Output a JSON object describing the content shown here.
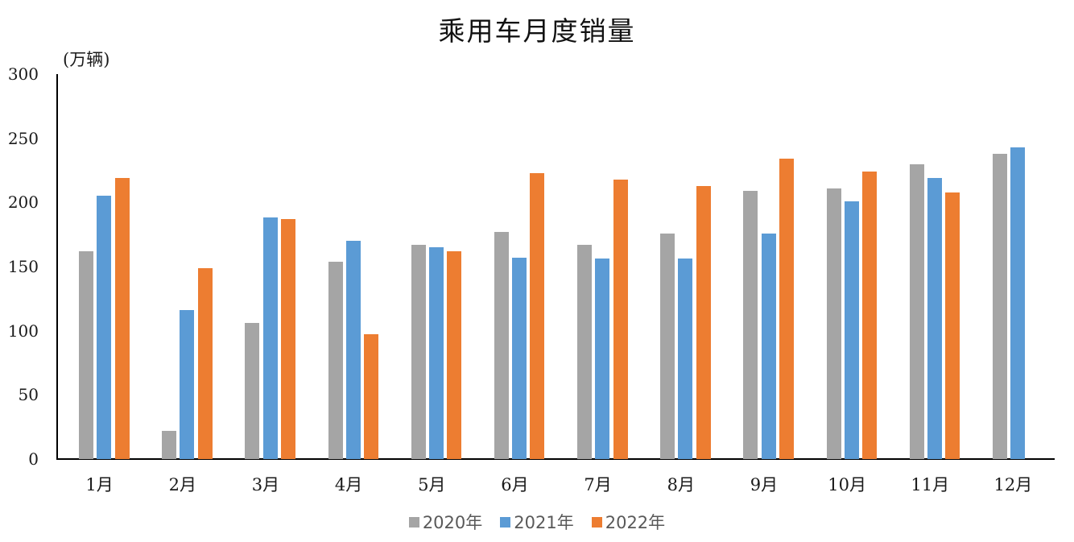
{
  "chart_data": {
    "type": "bar",
    "title": "乘用车月度销量",
    "unit_label": "(万辆)",
    "categories": [
      "1月",
      "2月",
      "3月",
      "4月",
      "5月",
      "6月",
      "7月",
      "8月",
      "9月",
      "10月",
      "11月",
      "12月"
    ],
    "series": [
      {
        "name": "2020年",
        "color": "#A5A5A5",
        "values": [
          162,
          22,
          106,
          154,
          167,
          177,
          167,
          176,
          209,
          211,
          230,
          238
        ]
      },
      {
        "name": "2021年",
        "color": "#5B9BD5",
        "values": [
          205,
          116,
          188,
          170,
          165,
          157,
          156,
          156,
          176,
          201,
          219,
          243
        ]
      },
      {
        "name": "2022年",
        "color": "#ED7D31",
        "values": [
          219,
          149,
          187,
          97,
          162,
          223,
          218,
          213,
          234,
          224,
          208,
          null
        ]
      }
    ],
    "ylim": [
      0,
      300
    ],
    "yticks": [
      0,
      50,
      100,
      150,
      200,
      250,
      300
    ],
    "xlabel": "",
    "ylabel": "(万辆)",
    "grid": false,
    "legend_position": "bottom",
    "axis_color": "#000000",
    "tick_label_color": "#1a1a1a",
    "legend_text_color": "#595959",
    "background_color": "#ffffff"
  }
}
